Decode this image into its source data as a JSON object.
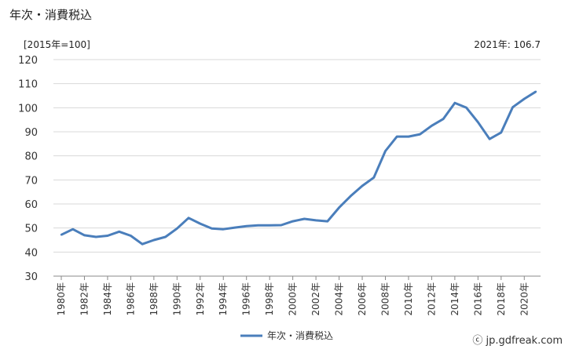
{
  "page": {
    "title": "年次・消費税込",
    "unit": "[2015年=100]",
    "latest": "2021年: 106.7",
    "credit": "ⓒ jp.gdfreak.com"
  },
  "chart_data": {
    "type": "line",
    "title": "年次・消費税込",
    "ylabel": "[2015年=100]",
    "xlabel": "",
    "ylim": [
      30,
      120
    ],
    "yticks": [
      30,
      40,
      50,
      60,
      70,
      80,
      90,
      100,
      110,
      120
    ],
    "grid": true,
    "legend": "bottom-center",
    "x": [
      1980,
      1981,
      1982,
      1983,
      1984,
      1985,
      1986,
      1987,
      1988,
      1989,
      1990,
      1991,
      1992,
      1993,
      1994,
      1995,
      1996,
      1997,
      1998,
      1999,
      2000,
      2001,
      2002,
      2003,
      2004,
      2005,
      2006,
      2007,
      2008,
      2009,
      2010,
      2011,
      2012,
      2013,
      2014,
      2015,
      2016,
      2017,
      2018,
      2019,
      2020,
      2021
    ],
    "xtick_labels": [
      "1980年",
      "1982年",
      "1984年",
      "1986年",
      "1988年",
      "1990年",
      "1992年",
      "1994年",
      "1996年",
      "1998年",
      "2000年",
      "2002年",
      "2004年",
      "2006年",
      "2008年",
      "2010年",
      "2012年",
      "2014年",
      "2016年",
      "2018年",
      "2020年"
    ],
    "series": [
      {
        "name": "年次・消費税込",
        "color": "#4a7ebb",
        "values": [
          47.2,
          49.5,
          47.0,
          46.3,
          46.8,
          48.5,
          46.8,
          43.3,
          45.0,
          46.3,
          49.8,
          54.2,
          51.8,
          49.8,
          49.5,
          50.2,
          50.8,
          51.1,
          51.1,
          51.2,
          52.8,
          53.8,
          53.2,
          52.8,
          58.5,
          63.3,
          67.5,
          71.0,
          82.0,
          88.0,
          88.0,
          89.0,
          92.5,
          95.3,
          102.0,
          100.0,
          94.0,
          87.0,
          89.7,
          100.2,
          103.7,
          106.7
        ]
      }
    ]
  }
}
